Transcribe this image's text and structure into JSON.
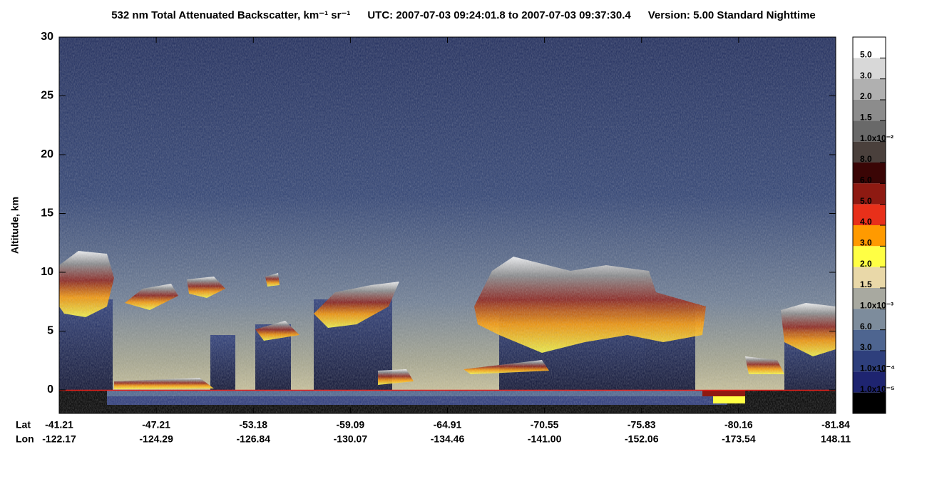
{
  "chart_data": {
    "type": "curtain",
    "title": "532 nm Total Attenuated Backscatter, km⁻¹ sr⁻¹",
    "time_range": "UTC:  2007-07-03 09:24:01.8  to  2007-07-03 09:37:30.4",
    "version": "Version: 5.00  Standard  Nighttime",
    "y_label": "Altitude, km",
    "ylim": [
      -2,
      30
    ],
    "yticks": [
      0,
      5,
      10,
      15,
      20,
      25,
      30
    ],
    "lat_label": "Lat",
    "lon_label": "Lon",
    "lat": [
      "-41.21",
      "-47.21",
      "-53.18",
      "-59.09",
      "-64.91",
      "-70.55",
      "-75.83",
      "-80.16",
      "-81.84"
    ],
    "lon": [
      "-122.17",
      "-124.29",
      "-126.84",
      "-130.07",
      "-134.46",
      "-141.00",
      "-152.06",
      "-173.54",
      "148.11"
    ],
    "colorbar_labels": [
      "5.0",
      "3.0",
      "2.0",
      "1.5",
      "1.0x10⁻²",
      "8.0",
      "6.0",
      "5.0",
      "4.0",
      "3.0",
      "2.0",
      "1.5",
      "1.0x10⁻³",
      "6.0",
      "3.0",
      "1.0x10⁻⁴",
      "1.0x10⁻⁵"
    ],
    "colorbar_colors": [
      "#ffffff",
      "#d8d8d8",
      "#b0b0b0",
      "#8c8c8c",
      "#696969",
      "#4a403c",
      "#3a0505",
      "#8e1a12",
      "#e8301a",
      "#ff9a00",
      "#ffff44",
      "#e9d8a8",
      "#a8a9a0",
      "#7d8c9c",
      "#4e6590",
      "#2e3f7c",
      "#1e2470",
      "#000000"
    ]
  }
}
